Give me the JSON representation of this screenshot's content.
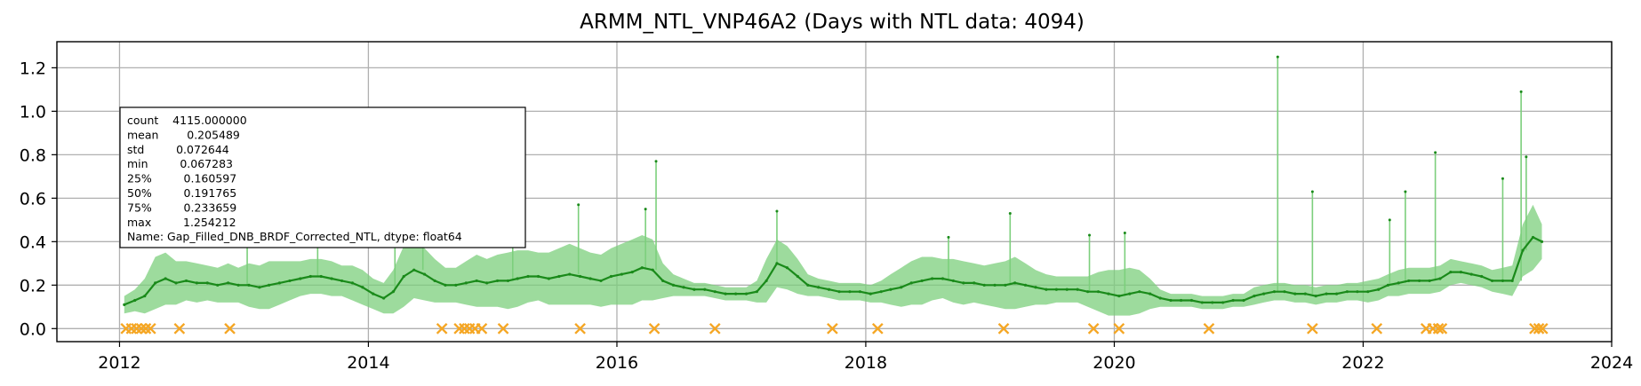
{
  "chart_data": {
    "type": "line",
    "title": "ARMM_NTL_VNP46A2 (Days with NTL data: 4094)",
    "xlabel": "",
    "ylabel": "",
    "xlim": [
      "2011-07-01",
      "2024-01-01"
    ],
    "ylim": [
      -0.06,
      1.32
    ],
    "x_ticks": [
      "2012",
      "2014",
      "2016",
      "2018",
      "2020",
      "2022",
      "2024"
    ],
    "y_ticks": [
      "0.0",
      "0.2",
      "0.4",
      "0.6",
      "0.8",
      "1.0",
      "1.2"
    ],
    "grid": true,
    "colors": {
      "series": "#1a8a1a",
      "series_band": "#7ccf7c",
      "gap_marker": "#f5a623"
    },
    "series": [
      {
        "values": [
          [
            "2012-01-15",
            0.11
          ],
          [
            "2012-02-15",
            0.13
          ],
          [
            "2012-03-15",
            0.15
          ],
          [
            "2012-04-15",
            0.21
          ],
          [
            "2012-05-15",
            0.23
          ],
          [
            "2012-06-15",
            0.21
          ],
          [
            "2012-07-15",
            0.22
          ],
          [
            "2012-08-15",
            0.21
          ],
          [
            "2012-09-15",
            0.21
          ],
          [
            "2012-10-15",
            0.2
          ],
          [
            "2012-11-15",
            0.21
          ],
          [
            "2012-12-15",
            0.2
          ],
          [
            "2013-01-15",
            0.2
          ],
          [
            "2013-02-15",
            0.19
          ],
          [
            "2013-03-15",
            0.2
          ],
          [
            "2013-04-15",
            0.21
          ],
          [
            "2013-05-15",
            0.22
          ],
          [
            "2013-06-15",
            0.23
          ],
          [
            "2013-07-15",
            0.24
          ],
          [
            "2013-08-15",
            0.24
          ],
          [
            "2013-09-15",
            0.23
          ],
          [
            "2013-10-15",
            0.22
          ],
          [
            "2013-11-15",
            0.21
          ],
          [
            "2013-12-15",
            0.19
          ],
          [
            "2014-01-15",
            0.16
          ],
          [
            "2014-02-15",
            0.14
          ],
          [
            "2014-03-15",
            0.17
          ],
          [
            "2014-04-15",
            0.24
          ],
          [
            "2014-05-15",
            0.27
          ],
          [
            "2014-06-15",
            0.25
          ],
          [
            "2014-07-15",
            0.22
          ],
          [
            "2014-08-15",
            0.2
          ],
          [
            "2014-09-15",
            0.2
          ],
          [
            "2014-10-15",
            0.21
          ],
          [
            "2014-11-15",
            0.22
          ],
          [
            "2014-12-15",
            0.21
          ],
          [
            "2015-01-15",
            0.22
          ],
          [
            "2015-02-15",
            0.22
          ],
          [
            "2015-03-15",
            0.23
          ],
          [
            "2015-04-15",
            0.24
          ],
          [
            "2015-05-15",
            0.24
          ],
          [
            "2015-06-15",
            0.23
          ],
          [
            "2015-07-15",
            0.24
          ],
          [
            "2015-08-15",
            0.25
          ],
          [
            "2015-09-15",
            0.24
          ],
          [
            "2015-10-15",
            0.23
          ],
          [
            "2015-11-15",
            0.22
          ],
          [
            "2015-12-15",
            0.24
          ],
          [
            "2016-01-15",
            0.25
          ],
          [
            "2016-02-15",
            0.26
          ],
          [
            "2016-03-15",
            0.28
          ],
          [
            "2016-04-15",
            0.27
          ],
          [
            "2016-05-15",
            0.22
          ],
          [
            "2016-06-15",
            0.2
          ],
          [
            "2016-07-15",
            0.19
          ],
          [
            "2016-08-15",
            0.18
          ],
          [
            "2016-09-15",
            0.18
          ],
          [
            "2016-10-15",
            0.17
          ],
          [
            "2016-11-15",
            0.16
          ],
          [
            "2016-12-15",
            0.16
          ],
          [
            "2017-01-15",
            0.16
          ],
          [
            "2017-02-15",
            0.17
          ],
          [
            "2017-03-15",
            0.22
          ],
          [
            "2017-04-15",
            0.3
          ],
          [
            "2017-05-15",
            0.28
          ],
          [
            "2017-06-15",
            0.24
          ],
          [
            "2017-07-15",
            0.2
          ],
          [
            "2017-08-15",
            0.19
          ],
          [
            "2017-09-15",
            0.18
          ],
          [
            "2017-10-15",
            0.17
          ],
          [
            "2017-11-15",
            0.17
          ],
          [
            "2017-12-15",
            0.17
          ],
          [
            "2018-01-15",
            0.16
          ],
          [
            "2018-02-15",
            0.17
          ],
          [
            "2018-03-15",
            0.18
          ],
          [
            "2018-04-15",
            0.19
          ],
          [
            "2018-05-15",
            0.21
          ],
          [
            "2018-06-15",
            0.22
          ],
          [
            "2018-07-15",
            0.23
          ],
          [
            "2018-08-15",
            0.23
          ],
          [
            "2018-09-15",
            0.22
          ],
          [
            "2018-10-15",
            0.21
          ],
          [
            "2018-11-15",
            0.21
          ],
          [
            "2018-12-15",
            0.2
          ],
          [
            "2019-01-15",
            0.2
          ],
          [
            "2019-02-15",
            0.2
          ],
          [
            "2019-03-15",
            0.21
          ],
          [
            "2019-04-15",
            0.2
          ],
          [
            "2019-05-15",
            0.19
          ],
          [
            "2019-06-15",
            0.18
          ],
          [
            "2019-07-15",
            0.18
          ],
          [
            "2019-08-15",
            0.18
          ],
          [
            "2019-09-15",
            0.18
          ],
          [
            "2019-10-15",
            0.17
          ],
          [
            "2019-11-15",
            0.17
          ],
          [
            "2019-12-15",
            0.16
          ],
          [
            "2020-01-15",
            0.15
          ],
          [
            "2020-02-15",
            0.16
          ],
          [
            "2020-03-15",
            0.17
          ],
          [
            "2020-04-15",
            0.16
          ],
          [
            "2020-05-15",
            0.14
          ],
          [
            "2020-06-15",
            0.13
          ],
          [
            "2020-07-15",
            0.13
          ],
          [
            "2020-08-15",
            0.13
          ],
          [
            "2020-09-15",
            0.12
          ],
          [
            "2020-10-15",
            0.12
          ],
          [
            "2020-11-15",
            0.12
          ],
          [
            "2020-12-15",
            0.13
          ],
          [
            "2021-01-15",
            0.13
          ],
          [
            "2021-02-15",
            0.15
          ],
          [
            "2021-03-15",
            0.16
          ],
          [
            "2021-04-15",
            0.17
          ],
          [
            "2021-05-15",
            0.17
          ],
          [
            "2021-06-15",
            0.16
          ],
          [
            "2021-07-15",
            0.16
          ],
          [
            "2021-08-15",
            0.15
          ],
          [
            "2021-09-15",
            0.16
          ],
          [
            "2021-10-15",
            0.16
          ],
          [
            "2021-11-15",
            0.17
          ],
          [
            "2021-12-15",
            0.17
          ],
          [
            "2022-01-15",
            0.17
          ],
          [
            "2022-02-15",
            0.18
          ],
          [
            "2022-03-15",
            0.2
          ],
          [
            "2022-04-15",
            0.21
          ],
          [
            "2022-05-15",
            0.22
          ],
          [
            "2022-06-15",
            0.22
          ],
          [
            "2022-07-15",
            0.22
          ],
          [
            "2022-08-15",
            0.23
          ],
          [
            "2022-09-15",
            0.26
          ],
          [
            "2022-10-15",
            0.26
          ],
          [
            "2022-11-15",
            0.25
          ],
          [
            "2022-12-15",
            0.24
          ],
          [
            "2023-01-15",
            0.22
          ],
          [
            "2023-02-15",
            0.22
          ],
          [
            "2023-03-15",
            0.22
          ],
          [
            "2023-04-15",
            0.36
          ],
          [
            "2023-05-15",
            0.42
          ],
          [
            "2023-06-10",
            0.4
          ]
        ],
        "spikes": [
          [
            "2013-01-10",
            0.47
          ],
          [
            "2013-08-05",
            0.45
          ],
          [
            "2014-03-20",
            0.55
          ],
          [
            "2014-06-10",
            0.45
          ],
          [
            "2015-03-01",
            0.48
          ],
          [
            "2015-09-10",
            0.57
          ],
          [
            "2016-03-25",
            0.55
          ],
          [
            "2016-04-25",
            0.77
          ],
          [
            "2017-04-15",
            0.54
          ],
          [
            "2018-09-01",
            0.42
          ],
          [
            "2019-03-01",
            0.53
          ],
          [
            "2019-10-20",
            0.43
          ],
          [
            "2020-02-01",
            0.44
          ],
          [
            "2021-04-25",
            1.25
          ],
          [
            "2021-08-05",
            0.63
          ],
          [
            "2022-03-20",
            0.5
          ],
          [
            "2022-05-05",
            0.63
          ],
          [
            "2022-08-01",
            0.81
          ],
          [
            "2023-02-15",
            0.69
          ],
          [
            "2023-04-10",
            1.09
          ],
          [
            "2023-04-25",
            0.79
          ]
        ],
        "band_halfwidth": [
          0.04,
          0.05,
          0.08,
          0.12,
          0.12,
          0.1,
          0.09,
          0.09,
          0.08,
          0.08,
          0.09,
          0.08,
          0.1,
          0.1,
          0.11,
          0.1,
          0.09,
          0.08,
          0.08,
          0.08,
          0.08,
          0.07,
          0.08,
          0.08,
          0.07,
          0.07,
          0.1,
          0.14,
          0.13,
          0.12,
          0.1,
          0.08,
          0.08,
          0.1,
          0.12,
          0.11,
          0.12,
          0.13,
          0.13,
          0.12,
          0.11,
          0.12,
          0.13,
          0.14,
          0.13,
          0.12,
          0.12,
          0.13,
          0.14,
          0.15,
          0.15,
          0.14,
          0.08,
          0.05,
          0.04,
          0.03,
          0.03,
          0.03,
          0.03,
          0.03,
          0.03,
          0.05,
          0.1,
          0.11,
          0.1,
          0.08,
          0.05,
          0.04,
          0.04,
          0.04,
          0.04,
          0.04,
          0.04,
          0.05,
          0.07,
          0.09,
          0.1,
          0.11,
          0.1,
          0.09,
          0.1,
          0.1,
          0.09,
          0.09,
          0.1,
          0.11,
          0.12,
          0.1,
          0.08,
          0.07,
          0.06,
          0.06,
          0.06,
          0.07,
          0.09,
          0.11,
          0.12,
          0.12,
          0.1,
          0.07,
          0.04,
          0.03,
          0.03,
          0.03,
          0.03,
          0.03,
          0.03,
          0.03,
          0.03,
          0.04,
          0.04,
          0.04,
          0.04,
          0.04,
          0.04,
          0.04,
          0.04,
          0.04,
          0.04,
          0.04,
          0.05,
          0.05,
          0.05,
          0.06,
          0.06,
          0.06,
          0.06,
          0.06,
          0.06,
          0.05,
          0.05,
          0.05,
          0.05,
          0.06,
          0.07,
          0.12,
          0.15,
          0.08
        ]
      }
    ],
    "gap_markers": [
      "2012-01-20",
      "2012-02-05",
      "2012-02-20",
      "2012-03-05",
      "2012-03-18",
      "2012-04-01",
      "2012-06-25",
      "2012-11-20",
      "2014-08-05",
      "2014-09-25",
      "2014-10-10",
      "2014-10-25",
      "2014-11-10",
      "2014-11-30",
      "2015-02-01",
      "2015-09-15",
      "2016-04-20",
      "2016-10-15",
      "2017-09-25",
      "2018-02-05",
      "2019-02-10",
      "2019-11-01",
      "2020-01-15",
      "2020-10-05",
      "2021-08-05",
      "2022-02-10",
      "2022-07-05",
      "2022-07-25",
      "2022-08-10",
      "2022-08-20",
      "2023-05-20",
      "2023-06-01",
      "2023-06-12"
    ],
    "stats_box": [
      "count    4115.000000",
      "mean        0.205489",
      "std         0.072644",
      "min         0.067283",
      "25%         0.160597",
      "50%         0.191765",
      "75%         0.233659",
      "max         1.254212",
      "Name: Gap_Filled_DNB_BRDF_Corrected_NTL, dtype: float64"
    ]
  }
}
